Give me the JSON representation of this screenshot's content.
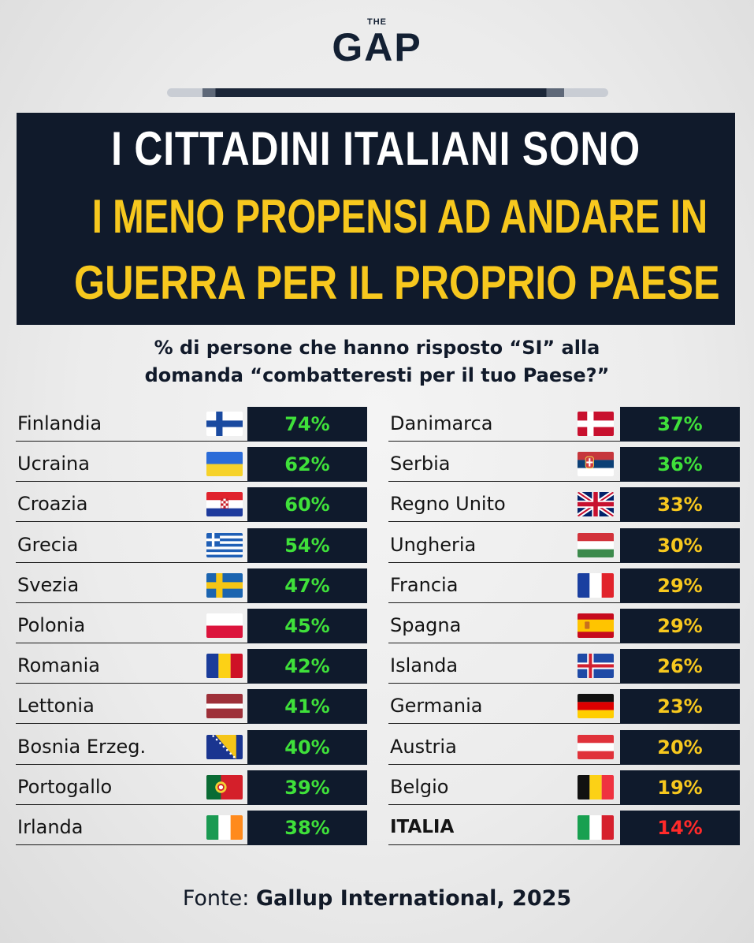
{
  "brand": {
    "small": "THE",
    "big": "GAP"
  },
  "title": {
    "line1": "I CITTADINI ITALIANI SONO",
    "line2": "I MENO PROPENSI AD ANDARE IN",
    "line3": "GUERRA PER IL PROPRIO PAESE"
  },
  "subtitle": {
    "line1": "% di persone che hanno risposto “SI” alla",
    "line2": "domanda “combatteresti per il tuo Paese?”"
  },
  "colors": {
    "green": "#3fe03a",
    "yellow": "#f7c81e",
    "red": "#ff2a2a",
    "panel": "#0f1a2c"
  },
  "chart_data": {
    "type": "table",
    "title": "I CITTADINI ITALIANI SONO I MENO PROPENSI AD ANDARE IN GUERRA PER IL PROPRIO PAESE",
    "categories": [
      "Finlandia",
      "Ucraina",
      "Croazia",
      "Grecia",
      "Svezia",
      "Polonia",
      "Romania",
      "Lettonia",
      "Bosnia Erzeg.",
      "Portogallo",
      "Irlanda",
      "Danimarca",
      "Serbia",
      "Regno Unito",
      "Ungheria",
      "Francia",
      "Spagna",
      "Islanda",
      "Germania",
      "Austria",
      "Belgio",
      "ITALIA"
    ],
    "values": [
      74,
      62,
      60,
      54,
      47,
      45,
      42,
      41,
      40,
      39,
      38,
      37,
      36,
      33,
      30,
      29,
      29,
      26,
      23,
      20,
      19,
      14
    ],
    "labels": [
      "74%",
      "62%",
      "60%",
      "54%",
      "47%",
      "45%",
      "42%",
      "41%",
      "40%",
      "39%",
      "38%",
      "37%",
      "36%",
      "33%",
      "30%",
      "29%",
      "29%",
      "26%",
      "23%",
      "20%",
      "19%",
      "14%"
    ],
    "flags": [
      "finland",
      "ukraine",
      "croatia",
      "greece",
      "sweden",
      "poland",
      "romania",
      "latvia",
      "bosnia",
      "portugal",
      "ireland",
      "denmark",
      "serbia",
      "uk",
      "hungary",
      "france",
      "spain",
      "iceland",
      "germany",
      "austria",
      "belgium",
      "italy"
    ],
    "value_color": [
      "green",
      "green",
      "green",
      "green",
      "green",
      "green",
      "green",
      "green",
      "green",
      "green",
      "green",
      "green",
      "green",
      "yellow",
      "yellow",
      "yellow",
      "yellow",
      "yellow",
      "yellow",
      "yellow",
      "yellow",
      "red"
    ]
  },
  "footer": {
    "prefix": "Fonte: ",
    "source": "Gallup International, 2025"
  }
}
